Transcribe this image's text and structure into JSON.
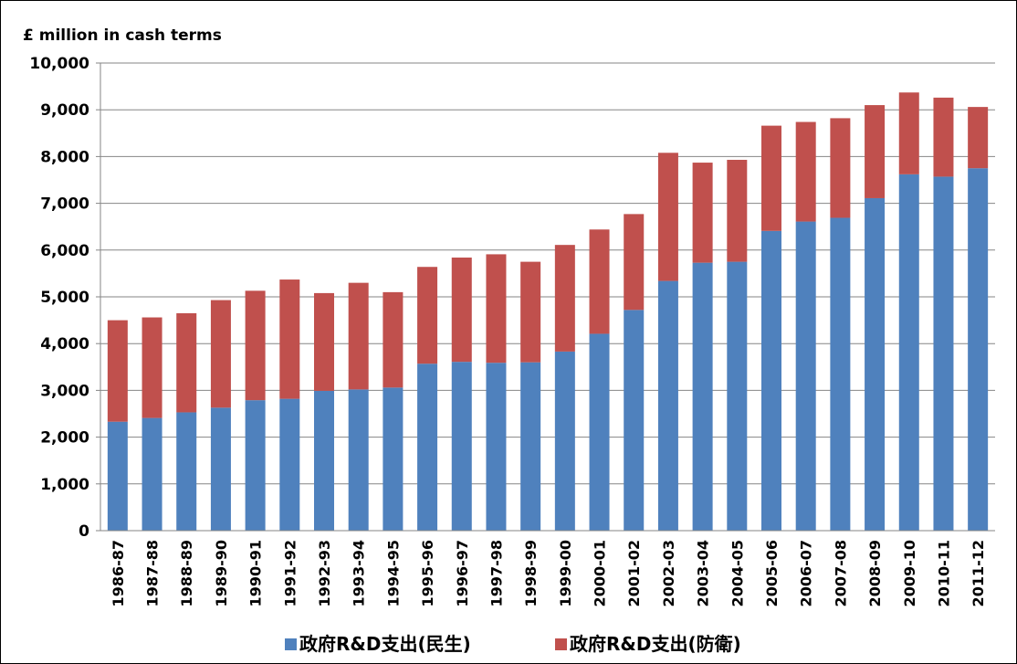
{
  "chart_data": {
    "type": "stacked_bar",
    "y_axis_label": "£ million in cash terms",
    "categories": [
      "1986-87",
      "1987-88",
      "1988-89",
      "1989-90",
      "1990-91",
      "1991-92",
      "1992-93",
      "1993-94",
      "1994-95",
      "1995-96",
      "1996-97",
      "1997-98",
      "1998-99",
      "1999-00",
      "2000-01",
      "2001-02",
      "2002-03",
      "2003-04",
      "2004-05",
      "2005-06",
      "2006-07",
      "2007-08",
      "2008-09",
      "2009-10",
      "2010-11",
      "2011-12"
    ],
    "series": [
      {
        "name": "政府R&D支出(民生)",
        "color": "#4f81bd",
        "values": [
          2330,
          2410,
          2530,
          2630,
          2790,
          2820,
          2990,
          3020,
          3060,
          3570,
          3610,
          3590,
          3600,
          3830,
          4210,
          4720,
          5340,
          5730,
          5750,
          6410,
          6610,
          6690,
          7110,
          7620,
          7570,
          7750
        ]
      },
      {
        "name": "政府R&D支出(防衛)",
        "color": "#c0504d",
        "values": [
          2170,
          2150,
          2120,
          2300,
          2340,
          2550,
          2090,
          2280,
          2040,
          2070,
          2230,
          2320,
          2150,
          2280,
          2230,
          2050,
          2740,
          2140,
          2180,
          2250,
          2130,
          2130,
          1990,
          1750,
          1690,
          1310
        ]
      }
    ],
    "ylim": [
      0,
      10000
    ],
    "yticks": [
      0,
      {
        "value": 1000,
        "label": "1,000"
      },
      {
        "value": 2000,
        "label": "2,000"
      },
      {
        "value": 3000,
        "label": "3,000"
      },
      {
        "value": 4000,
        "label": "4,000"
      },
      {
        "value": 5000,
        "label": "5,000"
      },
      {
        "value": 6000,
        "label": "6,000"
      },
      {
        "value": 7000,
        "label": "7,000"
      },
      {
        "value": 8000,
        "label": "8,000"
      },
      {
        "value": 9000,
        "label": "9,000"
      },
      {
        "value": 10000,
        "label": "10,000"
      }
    ],
    "grid": true,
    "legend": "bottom"
  }
}
